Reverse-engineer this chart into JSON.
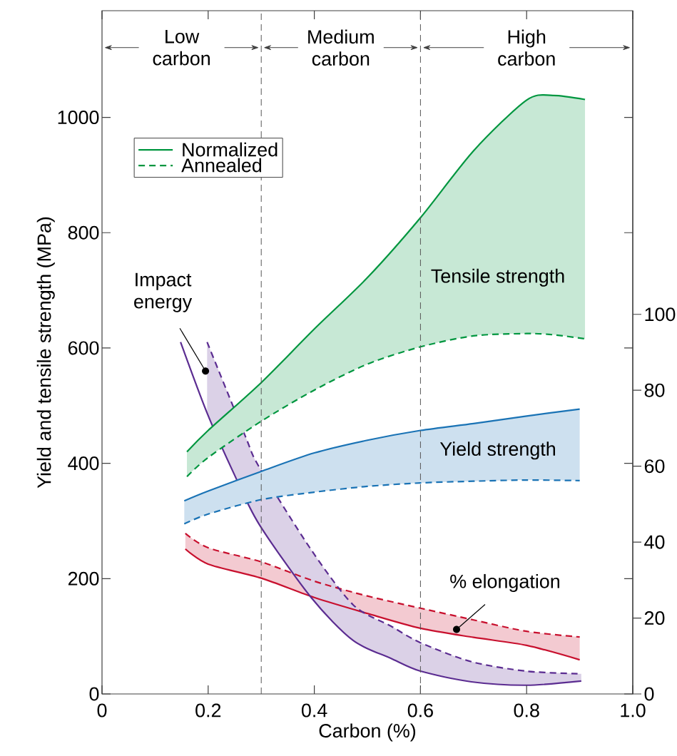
{
  "chart_data": {
    "type": "line",
    "xlabel": "Carbon (%)",
    "ylabel": "Yield and tensile strength (MPa)",
    "xlim": [
      0,
      1
    ],
    "ylim": [
      0,
      1185
    ],
    "y2lim": [
      0,
      180
    ],
    "xticks": [
      0,
      0.2,
      0.4,
      0.6,
      0.8,
      {
        "value": 1,
        "label": "1.0"
      }
    ],
    "yticks": [
      0,
      200,
      400,
      600,
      800,
      1000
    ],
    "y2ticks": [
      0,
      20,
      40,
      60,
      80,
      100
    ],
    "legend": "top left",
    "series": [
      {
        "name": "Normalized",
        "color": "#00963f",
        "line_style": "solid",
        "x": [
          0.16,
          0.2,
          0.3,
          0.4,
          0.5,
          0.6,
          0.7,
          0.8,
          0.85,
          0.91
        ],
        "values": [
          420,
          457,
          540,
          633,
          722,
          826,
          942,
          1030,
          1038,
          1031
        ]
      },
      {
        "name": "Annealed",
        "color": "#00963f",
        "line_style": "dashed",
        "x": [
          0.16,
          0.2,
          0.3,
          0.4,
          0.5,
          0.6,
          0.7,
          0.8,
          0.85,
          0.91
        ],
        "values": [
          377,
          410,
          473,
          527,
          572,
          602,
          621,
          625,
          623,
          616
        ],
        "lower": [
          377,
          410,
          473,
          527,
          572,
          602,
          621,
          625,
          623,
          616
        ],
        "upper": [
          420,
          457,
          540,
          633,
          722,
          826,
          942,
          1030,
          1038,
          1031
        ]
      },
      {
        "color": "#1a73b5",
        "line_style": "solid",
        "x": [
          0.155,
          0.2,
          0.3,
          0.4,
          0.5,
          0.6,
          0.7,
          0.8,
          0.9
        ],
        "values": [
          335,
          352,
          386,
          418,
          440,
          457,
          469,
          482,
          494
        ]
      },
      {
        "color": "#1a73b5",
        "line_style": "dashed",
        "x": [
          0.155,
          0.2,
          0.3,
          0.4,
          0.5,
          0.6,
          0.7,
          0.8,
          0.9
        ],
        "values": [
          295,
          312,
          337,
          350,
          360,
          366,
          369,
          371,
          370
        ],
        "lower": [
          295,
          312,
          337,
          350,
          360,
          366,
          369,
          371,
          370
        ],
        "upper": [
          335,
          352,
          386,
          418,
          440,
          457,
          469,
          482,
          494
        ]
      },
      {
        "color": "#c8102e",
        "line_style": "solid",
        "axis": "y2",
        "x": [
          0.157,
          0.2,
          0.3,
          0.4,
          0.5,
          0.6,
          0.7,
          0.8,
          0.9
        ],
        "values": [
          38.2,
          34.2,
          30.5,
          25.4,
          21.2,
          17.3,
          14.9,
          12.8,
          9.0
        ]
      },
      {
        "color": "#c8102e",
        "line_style": "dashed",
        "axis": "y2",
        "x": [
          0.157,
          0.2,
          0.3,
          0.4,
          0.5,
          0.6,
          0.7,
          0.8,
          0.9
        ],
        "values": [
          42.3,
          38.5,
          34.8,
          29.7,
          25.8,
          22.6,
          19.5,
          16.5,
          15.0
        ],
        "lower": [
          38.2,
          34.2,
          30.5,
          25.4,
          21.2,
          17.3,
          14.9,
          12.8,
          9.0
        ],
        "upper": [
          42.3,
          38.5,
          34.8,
          29.7,
          25.8,
          22.6,
          19.5,
          16.5,
          15.0
        ]
      },
      {
        "color": "#5b2c91",
        "line_style": "solid",
        "axis": "y2",
        "x": [
          0.148,
          0.198,
          0.249,
          0.296,
          0.394,
          0.473,
          0.544,
          0.6,
          0.696,
          0.8,
          0.903
        ],
        "values": [
          92.7,
          74.0,
          57.9,
          44.7,
          25.4,
          14.1,
          9.4,
          6.0,
          3.2,
          2.3,
          3.4
        ]
      },
      {
        "color": "#5b2c91",
        "line_style": "dashed",
        "axis": "y2",
        "x": [
          0.198,
          0.27,
          0.296,
          0.394,
          0.473,
          0.544,
          0.6,
          0.696,
          0.8,
          0.903
        ],
        "values": [
          92.7,
          67.9,
          59.8,
          38.0,
          23.5,
          17.9,
          13.5,
          8.5,
          6.0,
          5.3
        ],
        "lower": [
          74.0,
          51.5,
          44.7,
          25.4,
          14.1,
          9.4,
          6.0,
          3.2,
          2.3,
          3.4
        ],
        "upper": [
          92.7,
          67.9,
          59.8,
          38.0,
          23.5,
          17.9,
          13.5,
          8.5,
          6.0,
          5.3
        ]
      }
    ],
    "ref_lines": [
      {
        "axis": "x",
        "value": 0.3,
        "color": "#555555",
        "line_style": "dashed"
      },
      {
        "axis": "x",
        "value": 0.6,
        "color": "#555555",
        "line_style": "dashed"
      }
    ],
    "annotations": [
      "Low carbon",
      "Medium carbon",
      "High carbon",
      "Tensile strength",
      "Yield strength",
      {
        "text": "Impact energy",
        "x": 0.195,
        "y": 560
      },
      {
        "text": "% elongation",
        "x": 0.668,
        "y": 112
      }
    ]
  }
}
